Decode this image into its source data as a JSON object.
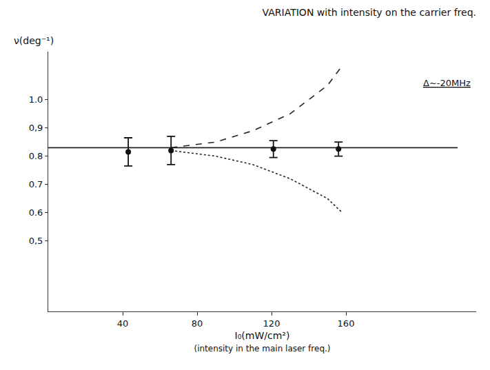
{
  "chart_data": {
    "type": "scatter",
    "title": "VARIATION with intensity on the carrier freq.",
    "xlabel": "I₀(mW/cm²)",
    "xlabel_note": "(intensity in the main laser freq.)",
    "ylabel": "ν(deg⁻¹)",
    "annotations": [
      "Δ~-20MHz"
    ],
    "xlim": [
      0,
      230
    ],
    "xticks": [
      40,
      80,
      120,
      160
    ],
    "ylim": [
      0.25,
      1.17
    ],
    "yticks": [
      {
        "value": 0.5,
        "label": "0,5"
      },
      {
        "value": 0.6,
        "label": "0.6"
      },
      {
        "value": 0.7,
        "label": "0.7"
      },
      {
        "value": 0.8,
        "label": "0.8"
      },
      {
        "value": 0.9,
        "label": "0,9"
      },
      {
        "value": 1.0,
        "label": "1.0"
      }
    ],
    "grid": false,
    "series": [
      {
        "type": "line",
        "line_style": "solid",
        "color": "#222222",
        "x": [
          0,
          220
        ],
        "values": [
          0.83,
          0.83
        ]
      },
      {
        "type": "line",
        "line_style": "dashed",
        "color": "#222222",
        "x": [
          66,
          90,
          110,
          130,
          150,
          158
        ],
        "values": [
          0.83,
          0.85,
          0.89,
          0.95,
          1.05,
          1.12
        ]
      },
      {
        "type": "line",
        "line_style": "dotted",
        "color": "#222222",
        "x": [
          66,
          90,
          110,
          130,
          150,
          158
        ],
        "values": [
          0.82,
          0.8,
          0.77,
          0.72,
          0.65,
          0.6
        ]
      },
      {
        "type": "scatter",
        "marker": "circle",
        "color": "#111111",
        "x": [
          43,
          66,
          121,
          156
        ],
        "values": [
          0.815,
          0.82,
          0.825,
          0.825
        ],
        "errors": [
          0.05,
          0.05,
          0.03,
          0.025
        ]
      }
    ]
  }
}
